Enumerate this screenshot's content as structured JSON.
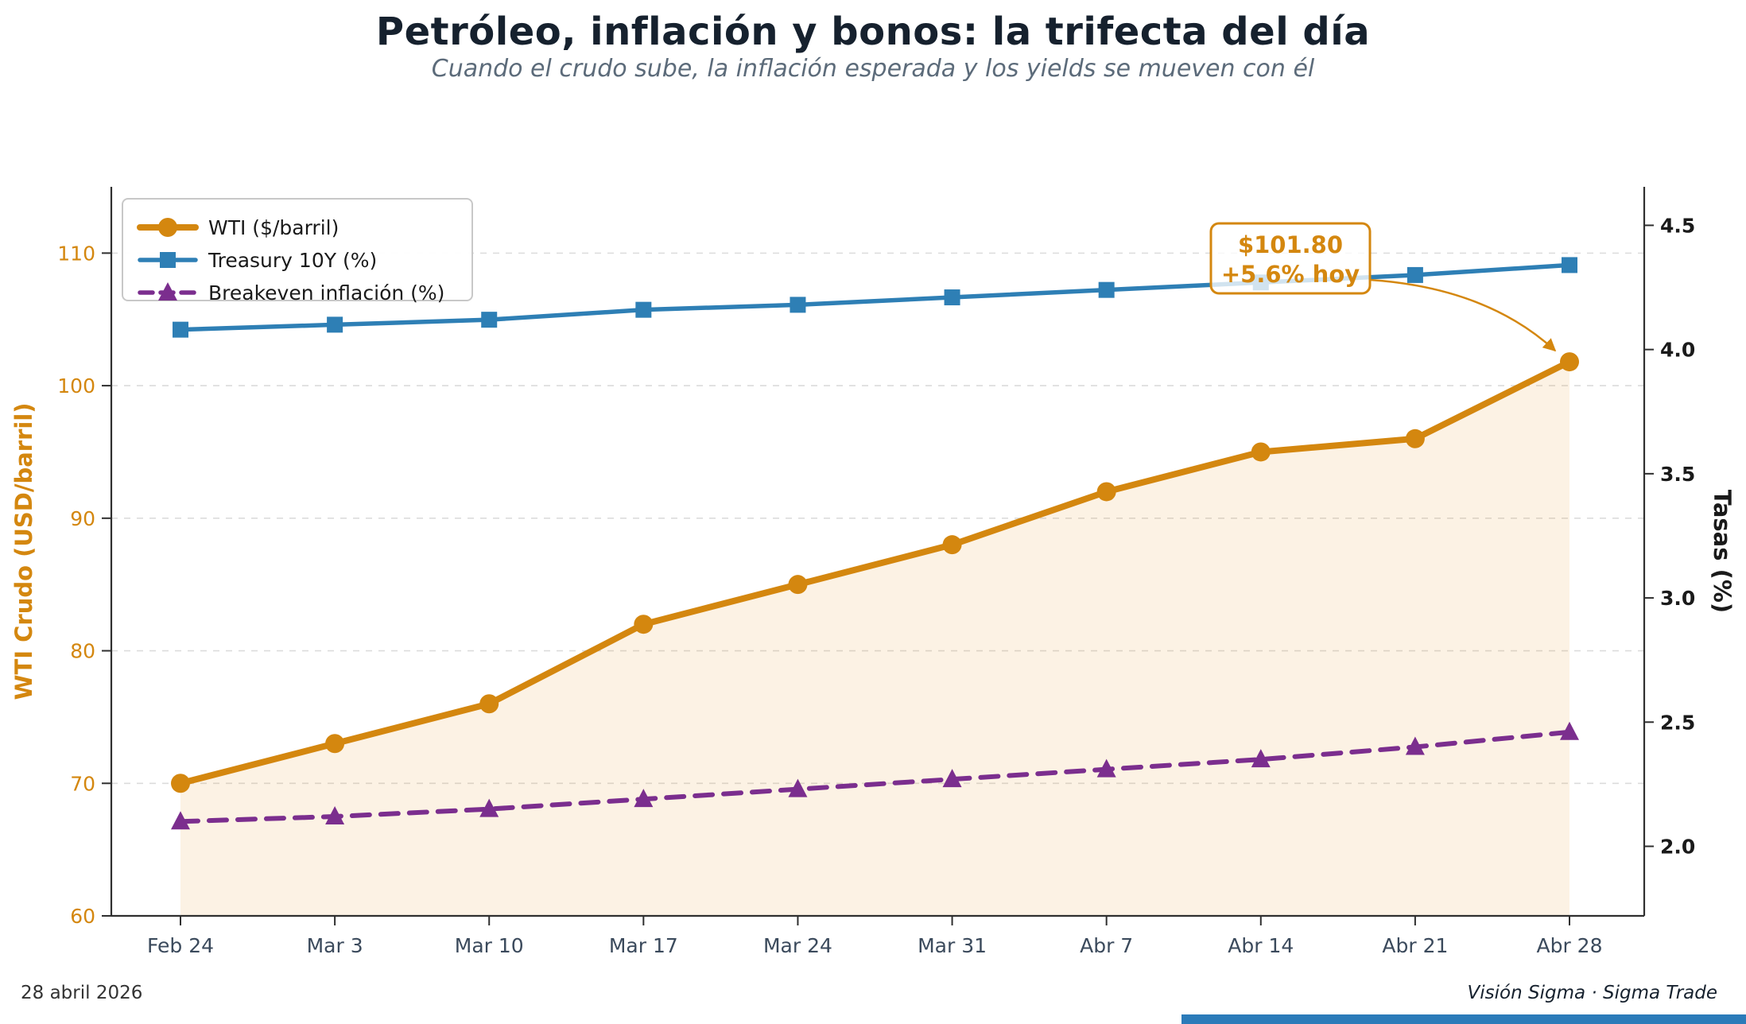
{
  "title": "Petróleo, inflación y bonos: la trifecta del día",
  "subtitle": "Cuando el crudo sube, la inflación esperada y los yields se mueven con él",
  "footer": {
    "date": "28 abril 2026",
    "credit": "Visión Sigma · Sigma Trade"
  },
  "annotation": {
    "line1": "$101.80",
    "line2": "+5.6% hoy"
  },
  "colors": {
    "wti": "#d4870f",
    "treasury": "#2e7fb5",
    "breakeven": "#7b2e8e",
    "area_fill": "#e89a2f",
    "grid": "#dcdcdc",
    "spine": "#2f2f2f",
    "title": "#16212e",
    "subtitle": "#5c6b7a",
    "xtick": "#3b4a5c",
    "right_tick": "#1a1a1a",
    "legend_border": "#c8c8c8",
    "footer_text": "#333333",
    "accent_bar": "#2b7bb9"
  },
  "chart_data": {
    "type": "line",
    "title": "Petróleo, inflación y bonos: la trifecta del día",
    "subtitle": "Cuando el crudo sube, la inflación esperada y los yields se mueven con él",
    "categories": [
      "Feb 24",
      "Mar 3",
      "Mar 10",
      "Mar 17",
      "Mar 24",
      "Mar 31",
      "Abr 7",
      "Abr 14",
      "Abr 21",
      "Abr 28"
    ],
    "series": [
      {
        "name": "WTI ($/barril)",
        "axis": "left",
        "marker": "circle",
        "style": "solid",
        "area_fill": true,
        "values": [
          70,
          73,
          76,
          82,
          85,
          88,
          92,
          95,
          96,
          101.8
        ]
      },
      {
        "name": "Treasury 10Y (%)",
        "axis": "right",
        "marker": "square",
        "style": "solid",
        "area_fill": false,
        "values": [
          4.08,
          4.1,
          4.12,
          4.16,
          4.18,
          4.21,
          4.24,
          4.27,
          4.3,
          4.34
        ]
      },
      {
        "name": "Breakeven inflación (%)",
        "axis": "right",
        "marker": "triangle",
        "style": "dashed",
        "area_fill": false,
        "values": [
          2.1,
          2.12,
          2.15,
          2.19,
          2.23,
          2.27,
          2.31,
          2.35,
          2.4,
          2.46
        ]
      }
    ],
    "left_axis": {
      "label": "WTI Crudo (USD/barril)",
      "ticks": [
        60,
        70,
        80,
        90,
        100,
        110
      ],
      "range": [
        60,
        115.0
      ]
    },
    "right_axis": {
      "label": "Tasas (%)",
      "ticks": [
        {
          "v": 2.0,
          "label": "2.0"
        },
        {
          "v": 2.5,
          "label": "2.5"
        },
        {
          "v": 3.0,
          "label": "3.0"
        },
        {
          "v": 3.5,
          "label": "3.5"
        },
        {
          "v": 4.0,
          "label": "4.0"
        },
        {
          "v": 4.5,
          "label": "4.5"
        }
      ],
      "range": [
        1.72,
        4.655
      ]
    },
    "grid": true,
    "legend_position": "upper-left",
    "annotation": {
      "lines": [
        "$101.80",
        "+5.6% hoy"
      ],
      "series": "WTI ($/barril)",
      "target_index": 9
    }
  }
}
